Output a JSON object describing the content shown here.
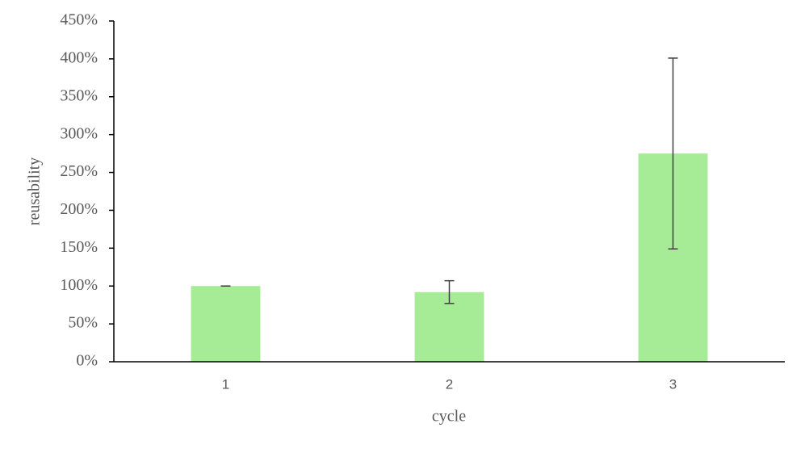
{
  "chart_data": {
    "type": "bar",
    "x_label": "cycle",
    "y_label": "reusability",
    "categories": [
      "1",
      "2",
      "3"
    ],
    "values": [
      100,
      92,
      275
    ],
    "errors": [
      0,
      15,
      126
    ],
    "color": "#a6eb96",
    "ylim": [
      0,
      450
    ],
    "yticks": [
      {
        "value": 0,
        "label": "0%"
      },
      {
        "value": 50,
        "label": "50%"
      },
      {
        "value": 100,
        "label": "100%"
      },
      {
        "value": 150,
        "label": "150%"
      },
      {
        "value": 200,
        "label": "200%"
      },
      {
        "value": 250,
        "label": "250%"
      },
      {
        "value": 300,
        "label": "300%"
      },
      {
        "value": 350,
        "label": "350%"
      },
      {
        "value": 400,
        "label": "400%"
      },
      {
        "value": 450,
        "label": "450%"
      }
    ],
    "grid": false
  }
}
